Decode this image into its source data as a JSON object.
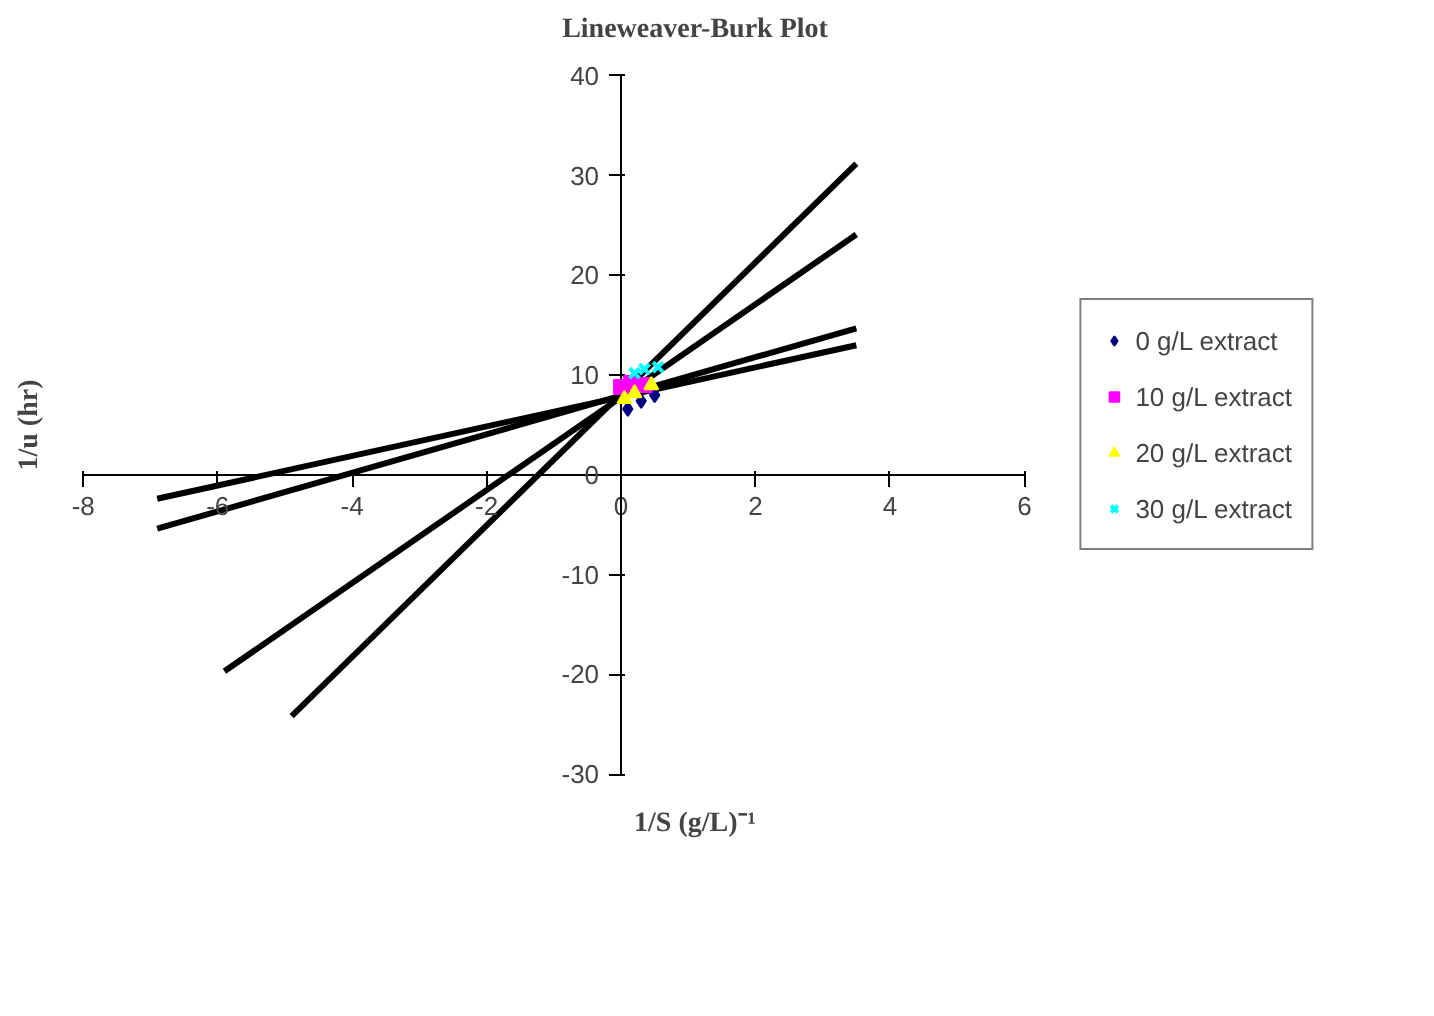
{
  "chart_data": {
    "type": "scatter",
    "title": "Lineweaver-Burk Plot",
    "xlabel": "1/S (g/L)⁻¹",
    "ylabel": "1/u (hr)",
    "xlim": [
      -8,
      6
    ],
    "xticks": [
      -8,
      -6,
      -4,
      -2,
      0,
      2,
      4,
      6
    ],
    "ylim": [
      -30,
      40
    ],
    "yticks": [
      -30,
      -20,
      -10,
      0,
      10,
      20,
      30,
      40
    ],
    "grid": false,
    "legend": "right",
    "series": [
      {
        "name": "0 g/L extract",
        "color": "#000080",
        "marker": "diamond",
        "x": [
          0.1,
          0.3,
          0.5
        ],
        "values": [
          6.6,
          7.4,
          8.0
        ]
      },
      {
        "name": "10 g/L extract",
        "color": "#ff00ff",
        "marker": "square",
        "x": [
          0.0,
          0.15,
          0.35
        ],
        "values": [
          8.8,
          9.2,
          9.0
        ]
      },
      {
        "name": "20 g/L extract",
        "color": "#ffff00",
        "marker": "triangle",
        "x": [
          0.05,
          0.2,
          0.45
        ],
        "values": [
          7.6,
          8.2,
          9.0
        ]
      },
      {
        "name": "30 g/L extract",
        "color": "#00ffff",
        "marker": "cross",
        "x": [
          0.2,
          0.35,
          0.55
        ],
        "values": [
          10.2,
          10.6,
          10.8
        ]
      },
      {
        "type": "line",
        "color": "#000000",
        "marker": "none",
        "x": [
          -4.9,
          3.5
        ],
        "values": [
          -24.2,
          31.2
        ]
      },
      {
        "type": "line",
        "color": "#000000",
        "marker": "none",
        "x": [
          -5.9,
          3.5
        ],
        "values": [
          -19.7,
          24.1
        ]
      },
      {
        "type": "line",
        "color": "#000000",
        "marker": "none",
        "x": [
          -6.9,
          3.5
        ],
        "values": [
          -5.4,
          14.7
        ]
      },
      {
        "type": "line",
        "color": "#000000",
        "marker": "none",
        "x": [
          -6.9,
          3.5
        ],
        "values": [
          -2.4,
          13.0
        ]
      }
    ]
  }
}
